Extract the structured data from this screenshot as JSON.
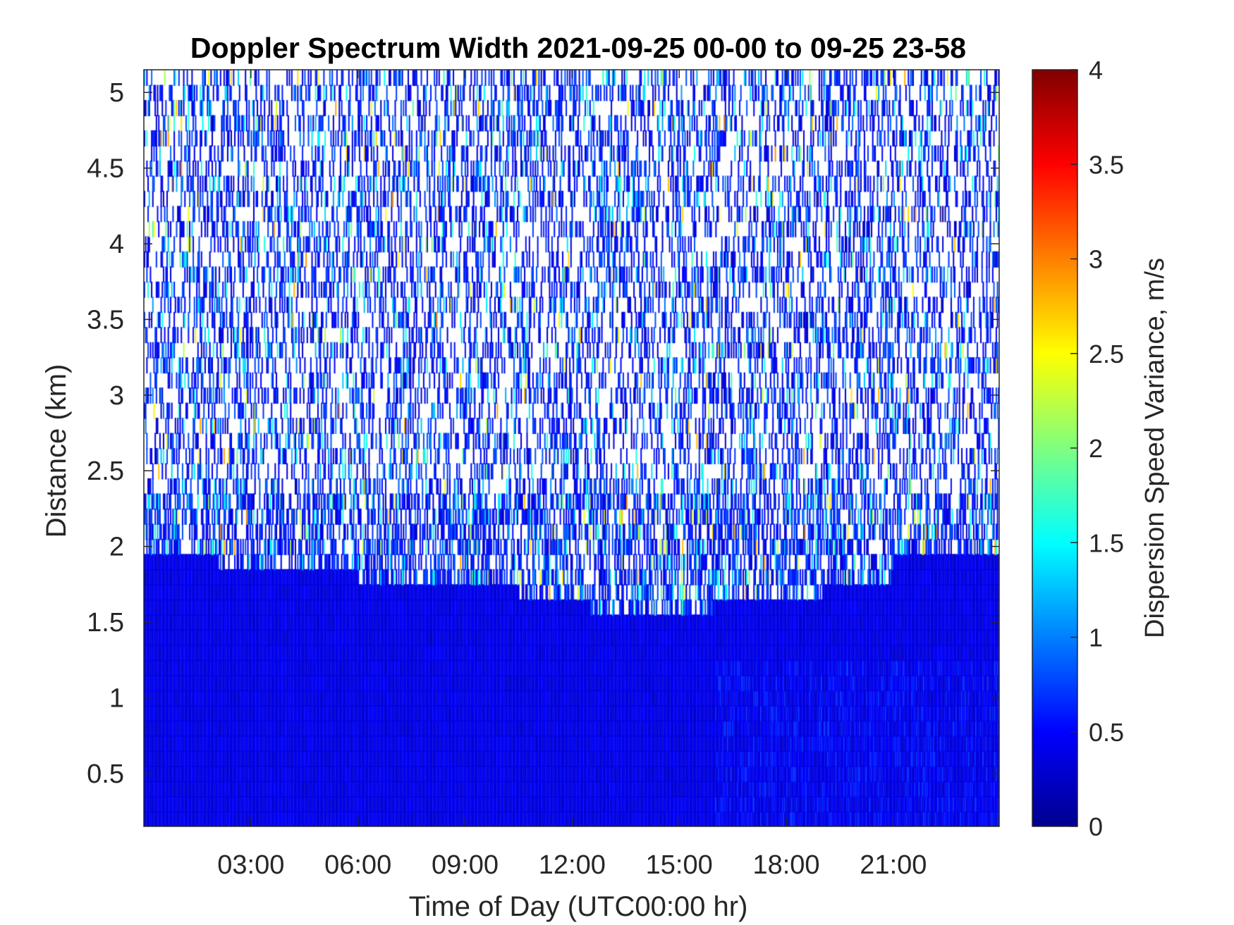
{
  "chart_data": {
    "type": "heatmap",
    "title": "Doppler Spectrum Width 2021-09-25 00-00 to 09-25 23-58",
    "xlabel": "Time of Day (UTC00:00 hr)",
    "ylabel": "Distance (km)",
    "xlim": [
      "00:00",
      "23:58"
    ],
    "ylim": [
      0.15,
      5.15
    ],
    "x_ticks": [
      "03:00",
      "06:00",
      "09:00",
      "12:00",
      "15:00",
      "18:00",
      "21:00"
    ],
    "x_tick_hours": [
      3,
      6,
      9,
      12,
      15,
      18,
      21
    ],
    "y_ticks": [
      "0.5",
      "1",
      "1.5",
      "2",
      "2.5",
      "3",
      "3.5",
      "4",
      "4.5",
      "5"
    ],
    "y_tick_values": [
      0.5,
      1,
      1.5,
      2,
      2.5,
      3,
      3.5,
      4,
      4.5,
      5
    ],
    "colorbar": {
      "label": "Dispersion Speed Variance, m/s",
      "range": [
        0,
        4
      ],
      "ticks": [
        "0",
        "0.5",
        "1",
        "1.5",
        "2",
        "2.5",
        "3",
        "3.5",
        "4"
      ],
      "tick_values": [
        0,
        0.5,
        1,
        1.5,
        2,
        2.5,
        3,
        3.5,
        4
      ],
      "colormap": "jet"
    },
    "range_gate_km": 0.1,
    "dense_layer_top_km": [
      {
        "from": "00:00",
        "to": "02:00",
        "top_km": 1.95
      },
      {
        "from": "02:00",
        "to": "06:00",
        "top_km": 1.85
      },
      {
        "from": "06:00",
        "to": "10:30",
        "top_km": 1.75
      },
      {
        "from": "10:30",
        "to": "12:30",
        "top_km": 1.65
      },
      {
        "from": "12:30",
        "to": "16:00",
        "top_km": 1.55
      },
      {
        "from": "16:00",
        "to": "19:00",
        "top_km": 1.65
      },
      {
        "from": "19:00",
        "to": "21:00",
        "top_km": 1.75
      },
      {
        "from": "21:00",
        "to": "23:58",
        "top_km": 1.95
      }
    ],
    "sparse_region_values": "noise, mostly 0.2–1.0 m/s with occasional 1.0–3.0 m/s",
    "dense_region_values": "mostly 0.3–0.6 m/s"
  }
}
